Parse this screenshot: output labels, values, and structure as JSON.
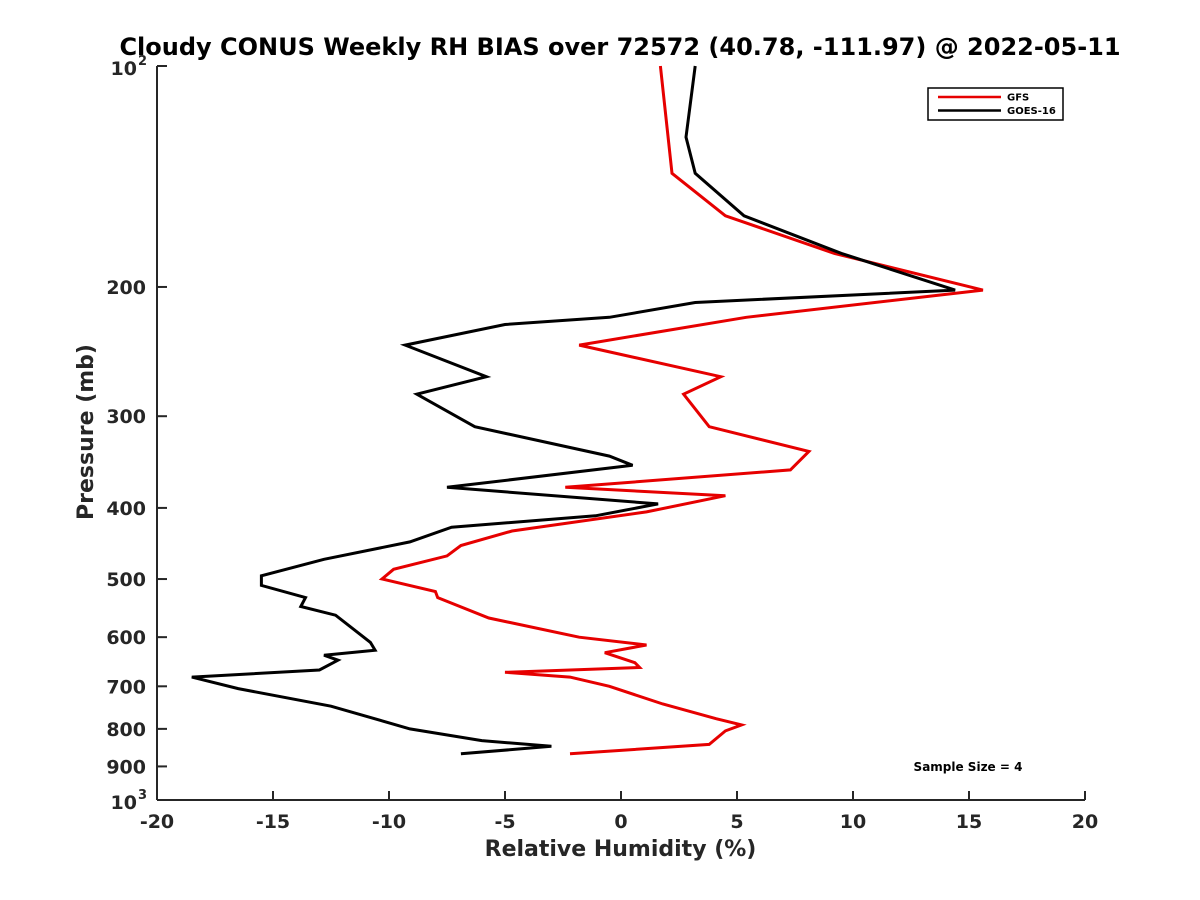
{
  "chart_data": {
    "type": "line",
    "title": "Cloudy CONUS Weekly RH BIAS over 72572 (40.78, -111.97) @ 2022-05-11",
    "xlabel": "Relative Humidity (%)",
    "ylabel": "Pressure (mb)",
    "xlim": [
      -20,
      20
    ],
    "ylim": [
      100,
      1000
    ],
    "yscale": "log",
    "yreversed": true,
    "xticks": [
      -20,
      -15,
      -10,
      -5,
      0,
      5,
      10,
      15,
      20
    ],
    "xtick_labels": [
      "-20",
      "-15",
      "-10",
      "-5",
      "0",
      "5",
      "10",
      "15",
      "20"
    ],
    "yticks_plain": [
      {
        "value": 200,
        "label": "200"
      },
      {
        "value": 300,
        "label": "300"
      },
      {
        "value": 400,
        "label": "400"
      },
      {
        "value": 500,
        "label": "500"
      },
      {
        "value": 600,
        "label": "600"
      },
      {
        "value": 700,
        "label": "700"
      },
      {
        "value": 800,
        "label": "800"
      },
      {
        "value": 900,
        "label": "900"
      }
    ],
    "yticks_power": [
      {
        "value": 100,
        "base": "10",
        "exp": "2"
      },
      {
        "value": 1000,
        "base": "10",
        "exp": "3"
      }
    ],
    "legend_position": "top-right",
    "annotation": "Sample Size = 4",
    "series": [
      {
        "name": "GFS",
        "color": "#e60000",
        "x": [
          -2.2,
          3.8,
          4.5,
          5.2,
          4.1,
          1.8,
          -0.5,
          -2.2,
          -5.0,
          0.8,
          0.6,
          -0.7,
          1.1,
          -1.8,
          -5.7,
          -7.9,
          -8.0,
          -10.3,
          -9.8,
          -7.5,
          -6.9,
          -4.7,
          1.1,
          4.5,
          -2.4,
          7.3,
          8.1,
          3.8,
          2.7,
          4.3,
          -1.8,
          5.4,
          15.6,
          9.2,
          4.5,
          2.2,
          1.7
        ],
        "y": [
          865,
          840,
          805,
          790,
          775,
          740,
          700,
          680,
          670,
          660,
          650,
          630,
          615,
          600,
          565,
          530,
          520,
          500,
          485,
          465,
          450,
          430,
          405,
          385,
          375,
          355,
          335,
          310,
          280,
          265,
          240,
          220,
          202,
          180,
          160,
          140,
          100
        ]
      },
      {
        "name": "GOES-16",
        "color": "#000000",
        "x": [
          -6.9,
          -3.0,
          -6.0,
          -9.1,
          -12.5,
          -16.5,
          -18.5,
          -13.0,
          -12.2,
          -12.8,
          -10.6,
          -10.8,
          -12.3,
          -13.8,
          -13.6,
          -15.5,
          -15.5,
          -12.8,
          -9.1,
          -7.3,
          -1.1,
          1.6,
          -7.5,
          0.5,
          -0.5,
          -6.3,
          -8.8,
          -5.8,
          -9.3,
          -5.0,
          -0.5,
          3.2,
          14.4,
          9.5,
          5.3,
          3.2,
          2.8,
          3.2
        ],
        "y": [
          865,
          845,
          830,
          800,
          745,
          705,
          680,
          665,
          645,
          635,
          625,
          610,
          560,
          545,
          530,
          510,
          495,
          470,
          445,
          425,
          410,
          395,
          375,
          350,
          340,
          310,
          280,
          265,
          240,
          225,
          220,
          210,
          202,
          180,
          160,
          140,
          125,
          100
        ]
      }
    ]
  }
}
